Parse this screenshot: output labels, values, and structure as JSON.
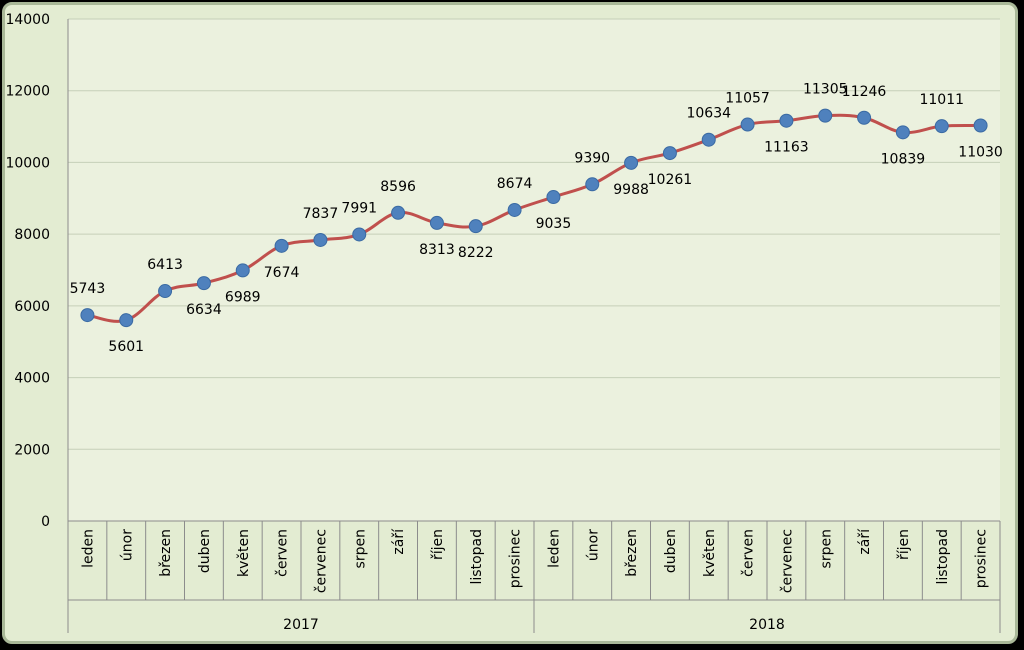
{
  "chart_data": {
    "type": "line",
    "categories": [
      "leden",
      "únor",
      "březen",
      "duben",
      "květen",
      "červen",
      "červenec",
      "srpen",
      "září",
      "říjen",
      "listopad",
      "prosinec",
      "leden",
      "únor",
      "březen",
      "duben",
      "květen",
      "červen",
      "červenec",
      "srpen",
      "září",
      "říjen",
      "listopad",
      "prosinec"
    ],
    "groups": [
      {
        "label": "2017",
        "count": 12
      },
      {
        "label": "2018",
        "count": 12
      }
    ],
    "series": [
      {
        "values": [
          5743,
          5601,
          6413,
          6634,
          6989,
          7674,
          7837,
          7991,
          8596,
          8313,
          8222,
          8674,
          9035,
          9390,
          9988,
          10261,
          10634,
          11057,
          11163,
          11305,
          11246,
          10839,
          11011,
          11030
        ],
        "label_positions": [
          "above",
          "below",
          "above",
          "below",
          "below",
          "below",
          "above",
          "above",
          "above",
          "below",
          "below",
          "above",
          "below",
          "above",
          "below",
          "below",
          "above",
          "above",
          "below",
          "above",
          "above",
          "below",
          "above",
          "below"
        ]
      }
    ],
    "ylim": [
      0,
      14000
    ],
    "yticks": [
      0,
      2000,
      4000,
      6000,
      8000,
      10000,
      12000,
      14000
    ],
    "grid": true,
    "colors": {
      "line": "#c0504d",
      "marker": "#4f81bd",
      "plot_background": "#ebf1de",
      "chart_background": "#e3ecd2",
      "gridline": "#c6cfb8"
    }
  }
}
